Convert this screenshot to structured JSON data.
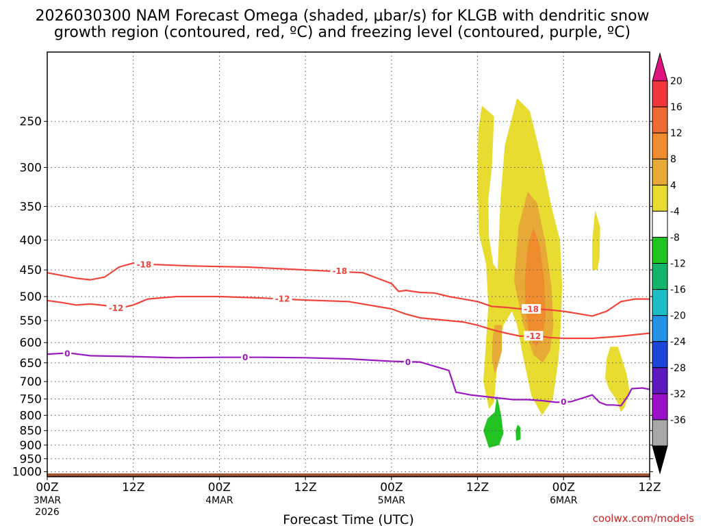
{
  "title": {
    "line1": "2026030300 NAM Forecast Omega (shaded, μbar/s) for KLGB with dendritic snow",
    "line2": "growth region (contoured, red, ºC) and freezing level (contoured, purple, ºC)"
  },
  "credit": "coolwx.com/models",
  "chart_data": {
    "type": "time-height",
    "title": "2026030300 NAM Forecast Omega (shaded, μbar/s) for KLGB with dendritic snow growth region (contoured, red, ºC) and freezing level (contoured, purple, ºC)",
    "xlabel": "Forecast Time (UTC)",
    "ylabel": "",
    "xlim_hours": [
      0,
      84
    ],
    "ylim_hpa": [
      1020,
      190
    ],
    "y_scale": "log",
    "y_ticks": [
      250,
      300,
      350,
      400,
      450,
      500,
      550,
      600,
      650,
      700,
      750,
      800,
      850,
      900,
      950,
      1000
    ],
    "x_ticks": [
      {
        "hour": 0,
        "label": "00Z",
        "date": "3MAR",
        "year": "2026"
      },
      {
        "hour": 12,
        "label": "12Z",
        "date": "",
        "year": ""
      },
      {
        "hour": 24,
        "label": "00Z",
        "date": "4MAR",
        "year": ""
      },
      {
        "hour": 36,
        "label": "12Z",
        "date": "",
        "year": ""
      },
      {
        "hour": 48,
        "label": "00Z",
        "date": "5MAR",
        "year": ""
      },
      {
        "hour": 60,
        "label": "12Z",
        "date": "",
        "year": ""
      },
      {
        "hour": 72,
        "label": "00Z",
        "date": "6MAR",
        "year": ""
      },
      {
        "hour": 84,
        "label": "12Z",
        "date": "",
        "year": ""
      }
    ],
    "colorbar": {
      "labels": [
        "20",
        "16",
        "12",
        "8",
        "4",
        "-4",
        "-8",
        "-12",
        "-16",
        "-20",
        "-24",
        "-28",
        "-32",
        "-36"
      ],
      "top_color": "#e0147f",
      "bottom_color": "#000000",
      "bins": [
        {
          "color": "#f0373c"
        },
        {
          "color": "#f06a35"
        },
        {
          "color": "#ee8c2e"
        },
        {
          "color": "#e8aa36"
        },
        {
          "color": "#e8dc30"
        },
        {
          "color": "#ffffff"
        },
        {
          "color": "#22c422"
        },
        {
          "color": "#14b56a"
        },
        {
          "color": "#1cbec5"
        },
        {
          "color": "#2292e6"
        },
        {
          "color": "#1e46da"
        },
        {
          "color": "#5e18c0"
        },
        {
          "color": "#9a10c8"
        },
        {
          "color": "#a8a8a8"
        }
      ]
    },
    "ground": {
      "color": "#a0522d",
      "top_hpa": 1007
    },
    "omega_regions": [
      {
        "color": "#e8dc30",
        "points": [
          [
            60.6,
            235
          ],
          [
            62.3,
            245
          ],
          [
            62.0,
            300
          ],
          [
            61.5,
            340
          ],
          [
            61.6,
            395
          ],
          [
            62.2,
            440
          ],
          [
            62.8,
            450
          ],
          [
            63.2,
            340
          ],
          [
            63.8,
            275
          ],
          [
            65.5,
            228
          ],
          [
            67.3,
            240
          ],
          [
            69.2,
            300
          ],
          [
            70.3,
            350
          ],
          [
            71.5,
            400
          ],
          [
            71.8,
            480
          ],
          [
            71.6,
            560
          ],
          [
            71.3,
            640
          ],
          [
            70.5,
            750
          ],
          [
            69.0,
            800
          ],
          [
            67.5,
            740
          ],
          [
            66.3,
            630
          ],
          [
            65.5,
            560
          ],
          [
            64.8,
            530
          ],
          [
            63.6,
            560
          ],
          [
            62.8,
            640
          ],
          [
            62.3,
            760
          ],
          [
            61.6,
            780
          ],
          [
            60.8,
            700
          ],
          [
            61.1,
            620
          ],
          [
            61.5,
            520
          ],
          [
            61.2,
            440
          ],
          [
            60.2,
            390
          ],
          [
            60.0,
            320
          ],
          [
            60.1,
            260
          ]
        ]
      },
      {
        "color": "#e8dc30",
        "points": [
          [
            76.4,
            355
          ],
          [
            77.1,
            380
          ],
          [
            77.0,
            430
          ],
          [
            76.7,
            450
          ],
          [
            76.0,
            450
          ],
          [
            76.0,
            400
          ]
        ]
      },
      {
        "color": "#e8dc30",
        "points": [
          [
            78.5,
            610
          ],
          [
            79.6,
            610
          ],
          [
            80.8,
            680
          ],
          [
            81.2,
            730
          ],
          [
            80.5,
            775
          ],
          [
            80.0,
            790
          ],
          [
            79.3,
            750
          ],
          [
            78.3,
            720
          ],
          [
            77.8,
            690
          ],
          [
            78.0,
            640
          ]
        ]
      },
      {
        "color": "#e8aa36",
        "points": [
          [
            67.0,
            330
          ],
          [
            68.3,
            345
          ],
          [
            69.4,
            400
          ],
          [
            70.3,
            480
          ],
          [
            70.6,
            560
          ],
          [
            70.1,
            620
          ],
          [
            69.1,
            650
          ],
          [
            67.8,
            630
          ],
          [
            66.4,
            560
          ],
          [
            65.1,
            470
          ],
          [
            65.7,
            380
          ]
        ]
      },
      {
        "color": "#e8aa36",
        "points": [
          [
            62.4,
            560
          ],
          [
            63.4,
            560
          ],
          [
            63.4,
            620
          ],
          [
            62.8,
            660
          ],
          [
            62.4,
            680
          ],
          [
            62.0,
            640
          ],
          [
            62.1,
            590
          ]
        ]
      },
      {
        "color": "#ee8c2e",
        "points": [
          [
            67.8,
            380
          ],
          [
            68.7,
            410
          ],
          [
            69.3,
            470
          ],
          [
            69.5,
            540
          ],
          [
            69.0,
            590
          ],
          [
            68.2,
            610
          ],
          [
            67.3,
            590
          ],
          [
            66.7,
            530
          ],
          [
            66.6,
            470
          ],
          [
            67.0,
            410
          ]
        ]
      },
      {
        "color": "#22c422",
        "points": [
          [
            62.7,
            740
          ],
          [
            63.3,
            800
          ],
          [
            63.6,
            860
          ],
          [
            63.0,
            900
          ],
          [
            61.6,
            910
          ],
          [
            60.8,
            850
          ],
          [
            61.4,
            810
          ],
          [
            62.4,
            790
          ]
        ]
      },
      {
        "color": "#22c422",
        "points": [
          [
            65.6,
            830
          ],
          [
            66.0,
            840
          ],
          [
            66.0,
            880
          ],
          [
            65.4,
            885
          ],
          [
            65.3,
            850
          ]
        ]
      }
    ],
    "contours": [
      {
        "name": "dgz-minus18",
        "label": "-18",
        "color": "#f0443a",
        "points": [
          [
            0,
            455
          ],
          [
            2,
            460
          ],
          [
            4,
            465
          ],
          [
            6,
            468
          ],
          [
            8,
            463
          ],
          [
            10,
            445
          ],
          [
            12,
            438
          ],
          [
            14,
            440
          ],
          [
            20,
            443
          ],
          [
            28,
            445
          ],
          [
            36,
            450
          ],
          [
            44,
            455
          ],
          [
            48,
            475
          ],
          [
            49,
            490
          ],
          [
            50,
            488
          ],
          [
            52,
            492
          ],
          [
            54,
            493
          ],
          [
            56,
            500
          ],
          [
            58,
            505
          ],
          [
            60,
            510
          ],
          [
            62,
            520
          ],
          [
            64,
            522
          ],
          [
            66,
            525
          ],
          [
            68,
            525
          ],
          [
            70,
            527
          ],
          [
            72,
            530
          ],
          [
            74,
            535
          ],
          [
            76,
            540
          ],
          [
            78,
            530
          ],
          [
            80,
            510
          ],
          [
            82,
            505
          ],
          [
            84,
            505
          ]
        ],
        "label_positions": [
          [
            13.5,
            440
          ],
          [
            40.8,
            452
          ],
          [
            67.5,
            525
          ]
        ]
      },
      {
        "name": "dgz-minus12",
        "label": "-12",
        "color": "#f0443a",
        "points": [
          [
            0,
            508
          ],
          [
            2,
            512
          ],
          [
            4,
            517
          ],
          [
            6,
            515
          ],
          [
            8,
            518
          ],
          [
            10,
            524
          ],
          [
            12,
            517
          ],
          [
            14,
            505
          ],
          [
            18,
            500
          ],
          [
            24,
            500
          ],
          [
            30,
            503
          ],
          [
            36,
            507
          ],
          [
            42,
            510
          ],
          [
            48,
            525
          ],
          [
            50,
            536
          ],
          [
            52,
            544
          ],
          [
            56,
            550
          ],
          [
            58,
            553
          ],
          [
            60,
            560
          ],
          [
            62,
            570
          ],
          [
            64,
            578
          ],
          [
            66,
            585
          ],
          [
            68,
            583
          ],
          [
            70,
            588
          ],
          [
            72,
            590
          ],
          [
            76,
            590
          ],
          [
            80,
            585
          ],
          [
            84,
            578
          ]
        ],
        "label_positions": [
          [
            9.6,
            523
          ],
          [
            32.8,
            504
          ],
          [
            67.8,
            584
          ]
        ]
      },
      {
        "name": "freezing-level-0",
        "label": "0",
        "color": "#9a18c0",
        "points": [
          [
            0,
            628
          ],
          [
            3,
            625
          ],
          [
            6,
            632
          ],
          [
            12,
            634
          ],
          [
            18,
            637
          ],
          [
            24,
            636
          ],
          [
            30,
            636
          ],
          [
            36,
            637
          ],
          [
            42,
            640
          ],
          [
            48,
            646
          ],
          [
            52,
            648
          ],
          [
            56,
            670
          ],
          [
            57,
            730
          ],
          [
            59,
            738
          ],
          [
            62,
            745
          ],
          [
            65,
            752
          ],
          [
            67,
            752
          ],
          [
            69,
            755
          ],
          [
            71,
            760
          ],
          [
            73,
            758
          ],
          [
            75,
            745
          ],
          [
            76,
            738
          ],
          [
            77,
            760
          ],
          [
            78,
            768
          ],
          [
            79,
            768
          ],
          [
            80,
            770
          ],
          [
            81,
            740
          ],
          [
            81.5,
            720
          ],
          [
            83,
            718
          ],
          [
            84,
            722
          ]
        ],
        "label_positions": [
          [
            2.8,
            626
          ],
          [
            27.6,
            636
          ],
          [
            50.3,
            648
          ],
          [
            72.0,
            758
          ]
        ]
      }
    ]
  }
}
